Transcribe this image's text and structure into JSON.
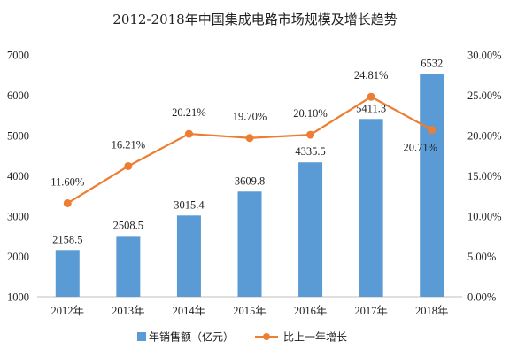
{
  "chart_data": {
    "type": "bar",
    "title": "2012-2018年中国集成电路市场规模及增长趋势",
    "categories": [
      "2012年",
      "2013年",
      "2014年",
      "2015年",
      "2016年",
      "2017年",
      "2018年"
    ],
    "series": [
      {
        "name": "年销售额（亿元）",
        "type": "bar",
        "axis": "left",
        "color": "#5b9bd5",
        "values": [
          2158.5,
          2508.5,
          3015.4,
          3609.8,
          4335.5,
          5411.3,
          6532
        ],
        "labels": [
          "2158.5",
          "2508.5",
          "3015.4",
          "3609.8",
          "4335.5",
          "5411.3",
          "6532"
        ]
      },
      {
        "name": "比上一年增长",
        "type": "line",
        "axis": "right",
        "color": "#ed7d31",
        "values": [
          11.6,
          16.21,
          20.21,
          19.7,
          20.1,
          24.81,
          20.71
        ],
        "labels": [
          "11.60%",
          "16.21%",
          "20.21%",
          "19.70%",
          "20.10%",
          "24.81%",
          "20.71%"
        ]
      }
    ],
    "y_left": {
      "min": 1000,
      "max": 7000,
      "ticks": [
        "1000",
        "2000",
        "3000",
        "4000",
        "5000",
        "6000",
        "7000"
      ]
    },
    "y_right": {
      "min": 0,
      "max": 30,
      "ticks": [
        "0.00%",
        "5.00%",
        "10.00%",
        "15.00%",
        "20.00%",
        "25.00%",
        "30.00%"
      ]
    },
    "grid": false,
    "legend_position": "bottom"
  }
}
